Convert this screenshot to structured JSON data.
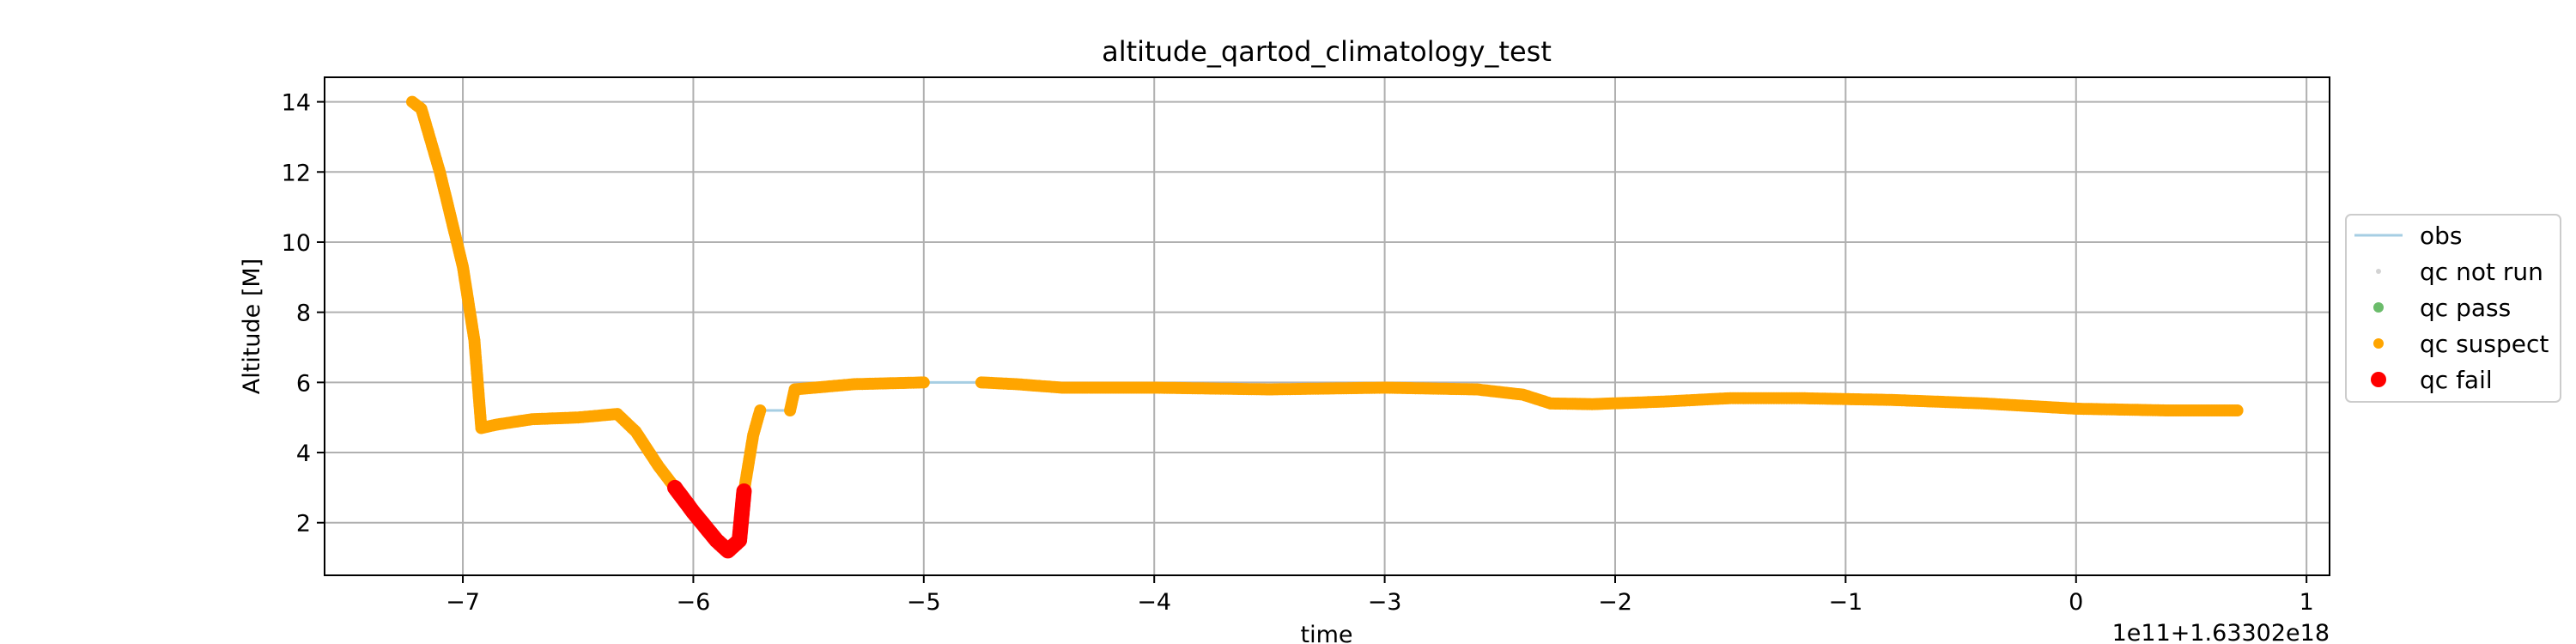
{
  "chart_data": {
    "type": "line",
    "title": "altitude_qartod_climatology_test",
    "xlabel": "time",
    "ylabel": "Altitude [M]",
    "x_offset_label": "1e11+1.63302e18",
    "xlim": [
      -7.6,
      1.1
    ],
    "ylim": [
      0.5,
      14.7
    ],
    "x_ticks": [
      -7,
      -6,
      -5,
      -4,
      -3,
      -2,
      -1,
      0,
      1
    ],
    "x_tick_labels": [
      "−7",
      "−6",
      "−5",
      "−4",
      "−3",
      "−2",
      "−1",
      "0",
      "1"
    ],
    "y_ticks": [
      2,
      4,
      6,
      8,
      10,
      12,
      14
    ],
    "y_tick_labels": [
      "2",
      "4",
      "6",
      "8",
      "10",
      "12",
      "14"
    ],
    "grid": true,
    "legend_position": "right",
    "legend": [
      {
        "label": "qc not run",
        "key": "qc_not_run",
        "color": "#d3d3d3",
        "marker": "small-dot"
      },
      {
        "label": "qc pass",
        "key": "qc_pass",
        "color": "#2ca02c",
        "marker": "dot"
      },
      {
        "label": "qc suspect",
        "key": "qc_suspect",
        "color": "#ffa500",
        "marker": "dot"
      },
      {
        "label": "qc fail",
        "key": "qc_fail",
        "color": "#ff0000",
        "marker": "big-dot"
      }
    ],
    "series": [
      {
        "name": "obs",
        "kind": "line",
        "color": "#a6cee3",
        "points": [
          [
            -7.22,
            14.0
          ],
          [
            -7.18,
            13.8
          ],
          [
            -7.1,
            12.0
          ],
          [
            -7.0,
            9.3
          ],
          [
            -6.95,
            7.2
          ],
          [
            -6.92,
            4.7
          ],
          [
            -6.85,
            4.8
          ],
          [
            -6.7,
            4.95
          ],
          [
            -6.5,
            5.0
          ],
          [
            -6.33,
            5.1
          ],
          [
            -6.25,
            4.6
          ],
          [
            -6.15,
            3.6
          ],
          [
            -6.08,
            3.0
          ],
          [
            -6.0,
            2.3
          ],
          [
            -5.9,
            1.5
          ],
          [
            -5.85,
            1.2
          ],
          [
            -5.8,
            1.5
          ],
          [
            -5.78,
            2.9
          ],
          [
            -5.74,
            4.5
          ],
          [
            -5.71,
            5.2
          ],
          [
            -5.58,
            5.2
          ],
          [
            -5.56,
            5.8
          ],
          [
            -5.3,
            5.95
          ],
          [
            -5.0,
            6.0
          ],
          [
            -4.75,
            6.0
          ],
          [
            -4.6,
            5.95
          ],
          [
            -4.4,
            5.85
          ],
          [
            -4.0,
            5.85
          ],
          [
            -3.5,
            5.8
          ],
          [
            -3.0,
            5.85
          ],
          [
            -2.6,
            5.8
          ],
          [
            -2.4,
            5.65
          ],
          [
            -2.28,
            5.4
          ],
          [
            -2.1,
            5.38
          ],
          [
            -1.8,
            5.45
          ],
          [
            -1.5,
            5.55
          ],
          [
            -1.2,
            5.55
          ],
          [
            -0.8,
            5.5
          ],
          [
            -0.4,
            5.4
          ],
          [
            0.0,
            5.25
          ],
          [
            0.4,
            5.2
          ],
          [
            0.7,
            5.2
          ]
        ]
      },
      {
        "name": "qc suspect",
        "kind": "markers",
        "color": "#ffa500",
        "segments": [
          [
            [
              -7.22,
              14.0
            ],
            [
              -7.18,
              13.8
            ],
            [
              -7.1,
              12.0
            ],
            [
              -7.0,
              9.3
            ],
            [
              -6.95,
              7.2
            ],
            [
              -6.92,
              4.7
            ],
            [
              -6.85,
              4.8
            ],
            [
              -6.7,
              4.95
            ],
            [
              -6.5,
              5.0
            ],
            [
              -6.33,
              5.1
            ],
            [
              -6.25,
              4.6
            ],
            [
              -6.15,
              3.6
            ],
            [
              -6.08,
              3.0
            ]
          ],
          [
            [
              -5.78,
              2.9
            ],
            [
              -5.74,
              4.5
            ],
            [
              -5.71,
              5.2
            ]
          ],
          [
            [
              -5.58,
              5.2
            ],
            [
              -5.56,
              5.8
            ],
            [
              -5.3,
              5.95
            ],
            [
              -5.0,
              6.0
            ]
          ],
          [
            [
              -4.75,
              6.0
            ],
            [
              -4.6,
              5.95
            ],
            [
              -4.4,
              5.85
            ],
            [
              -4.0,
              5.85
            ],
            [
              -3.5,
              5.8
            ],
            [
              -3.0,
              5.85
            ],
            [
              -2.6,
              5.8
            ],
            [
              -2.4,
              5.65
            ],
            [
              -2.28,
              5.4
            ],
            [
              -2.1,
              5.38
            ],
            [
              -1.8,
              5.45
            ],
            [
              -1.5,
              5.55
            ],
            [
              -1.2,
              5.55
            ],
            [
              -0.8,
              5.5
            ],
            [
              -0.4,
              5.4
            ],
            [
              0.0,
              5.25
            ],
            [
              0.4,
              5.2
            ],
            [
              0.7,
              5.2
            ]
          ]
        ]
      },
      {
        "name": "qc fail",
        "kind": "markers",
        "color": "#ff0000",
        "segments": [
          [
            [
              -6.08,
              3.0
            ],
            [
              -6.0,
              2.3
            ],
            [
              -5.9,
              1.5
            ],
            [
              -5.85,
              1.2
            ],
            [
              -5.8,
              1.5
            ],
            [
              -5.78,
              2.9
            ]
          ]
        ]
      }
    ]
  }
}
